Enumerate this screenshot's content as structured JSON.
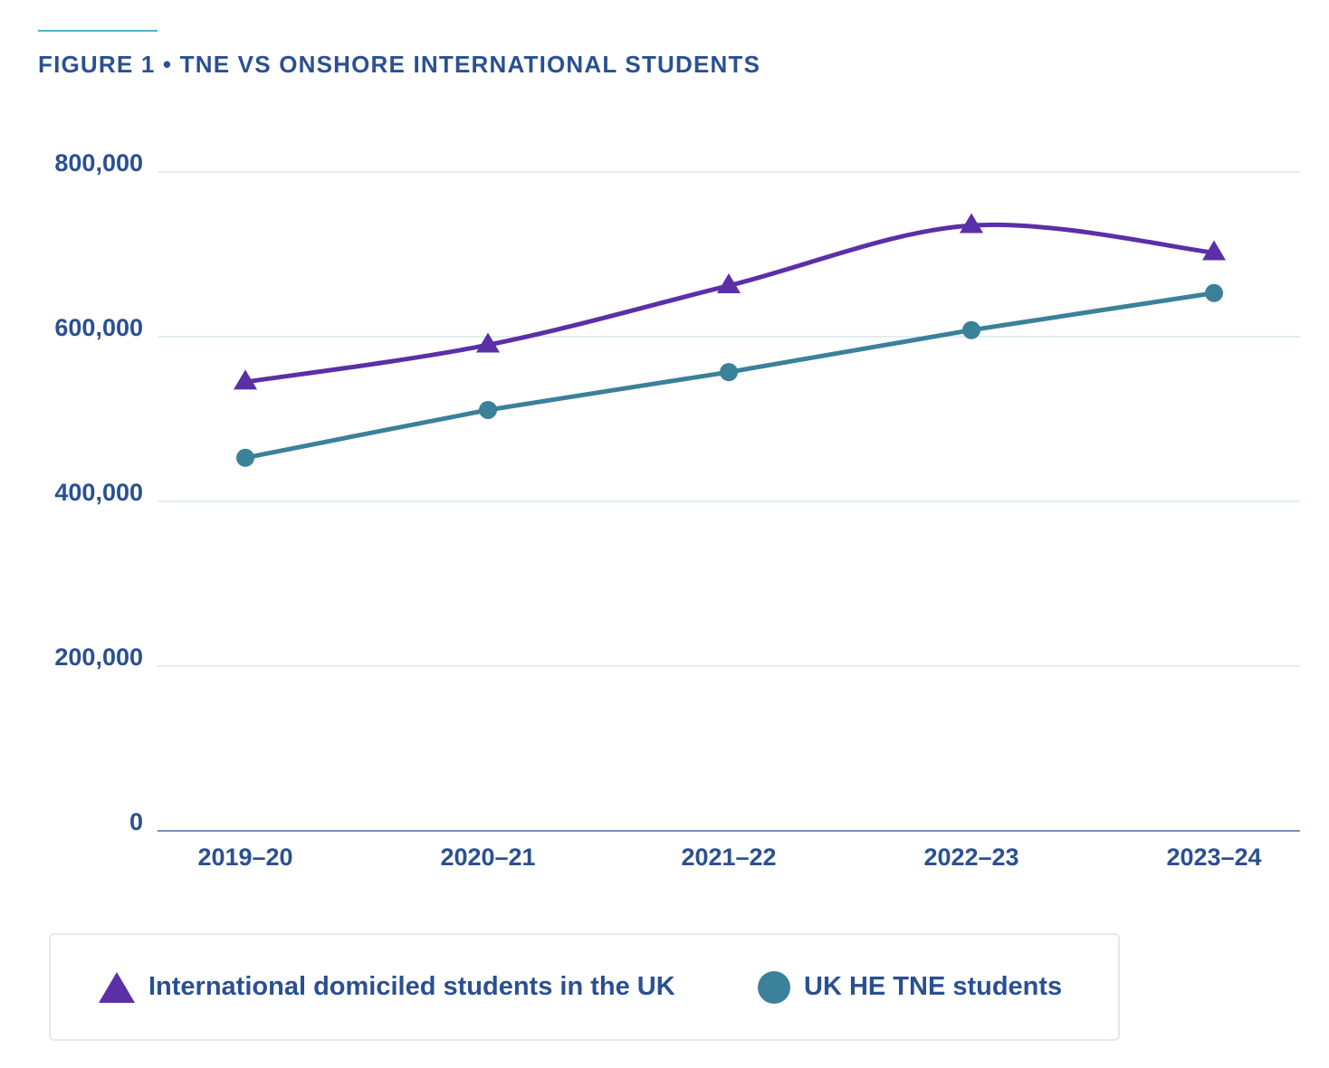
{
  "figure": {
    "title": "FIGURE 1 • TNE VS ONSHORE INTERNATIONAL STUDENTS"
  },
  "colors": {
    "title": "#2a5091",
    "international": "#5b2fa8",
    "tne": "#3a8199",
    "grid": "#c9dce6",
    "accent": "#4fb3c8"
  },
  "legend": {
    "international_label": "International domiciled students in the UK",
    "tne_label": "UK HE TNE students",
    "international_icon": "triangle-marker-icon",
    "tne_icon": "circle-marker-icon"
  },
  "chart_data": {
    "type": "line",
    "title": "FIGURE 1 • TNE VS ONSHORE INTERNATIONAL STUDENTS",
    "xlabel": "",
    "ylabel": "",
    "categories": [
      "2019–20",
      "2020–21",
      "2021–22",
      "2022–23",
      "2023–24"
    ],
    "ylim": [
      0,
      800000
    ],
    "yticks": [
      0,
      200000,
      400000,
      600000,
      800000
    ],
    "ytick_labels": [
      "0",
      "200,000",
      "400,000",
      "600,000",
      "800,000"
    ],
    "grid": true,
    "legend_position": "bottom",
    "series": [
      {
        "name": "International domiciled students in the UK",
        "marker": "triangle",
        "values": [
          545000,
          590000,
          662000,
          735000,
          702000
        ]
      },
      {
        "name": "UK HE TNE students",
        "marker": "circle",
        "values": [
          453000,
          511000,
          557000,
          608000,
          653000
        ]
      }
    ]
  }
}
